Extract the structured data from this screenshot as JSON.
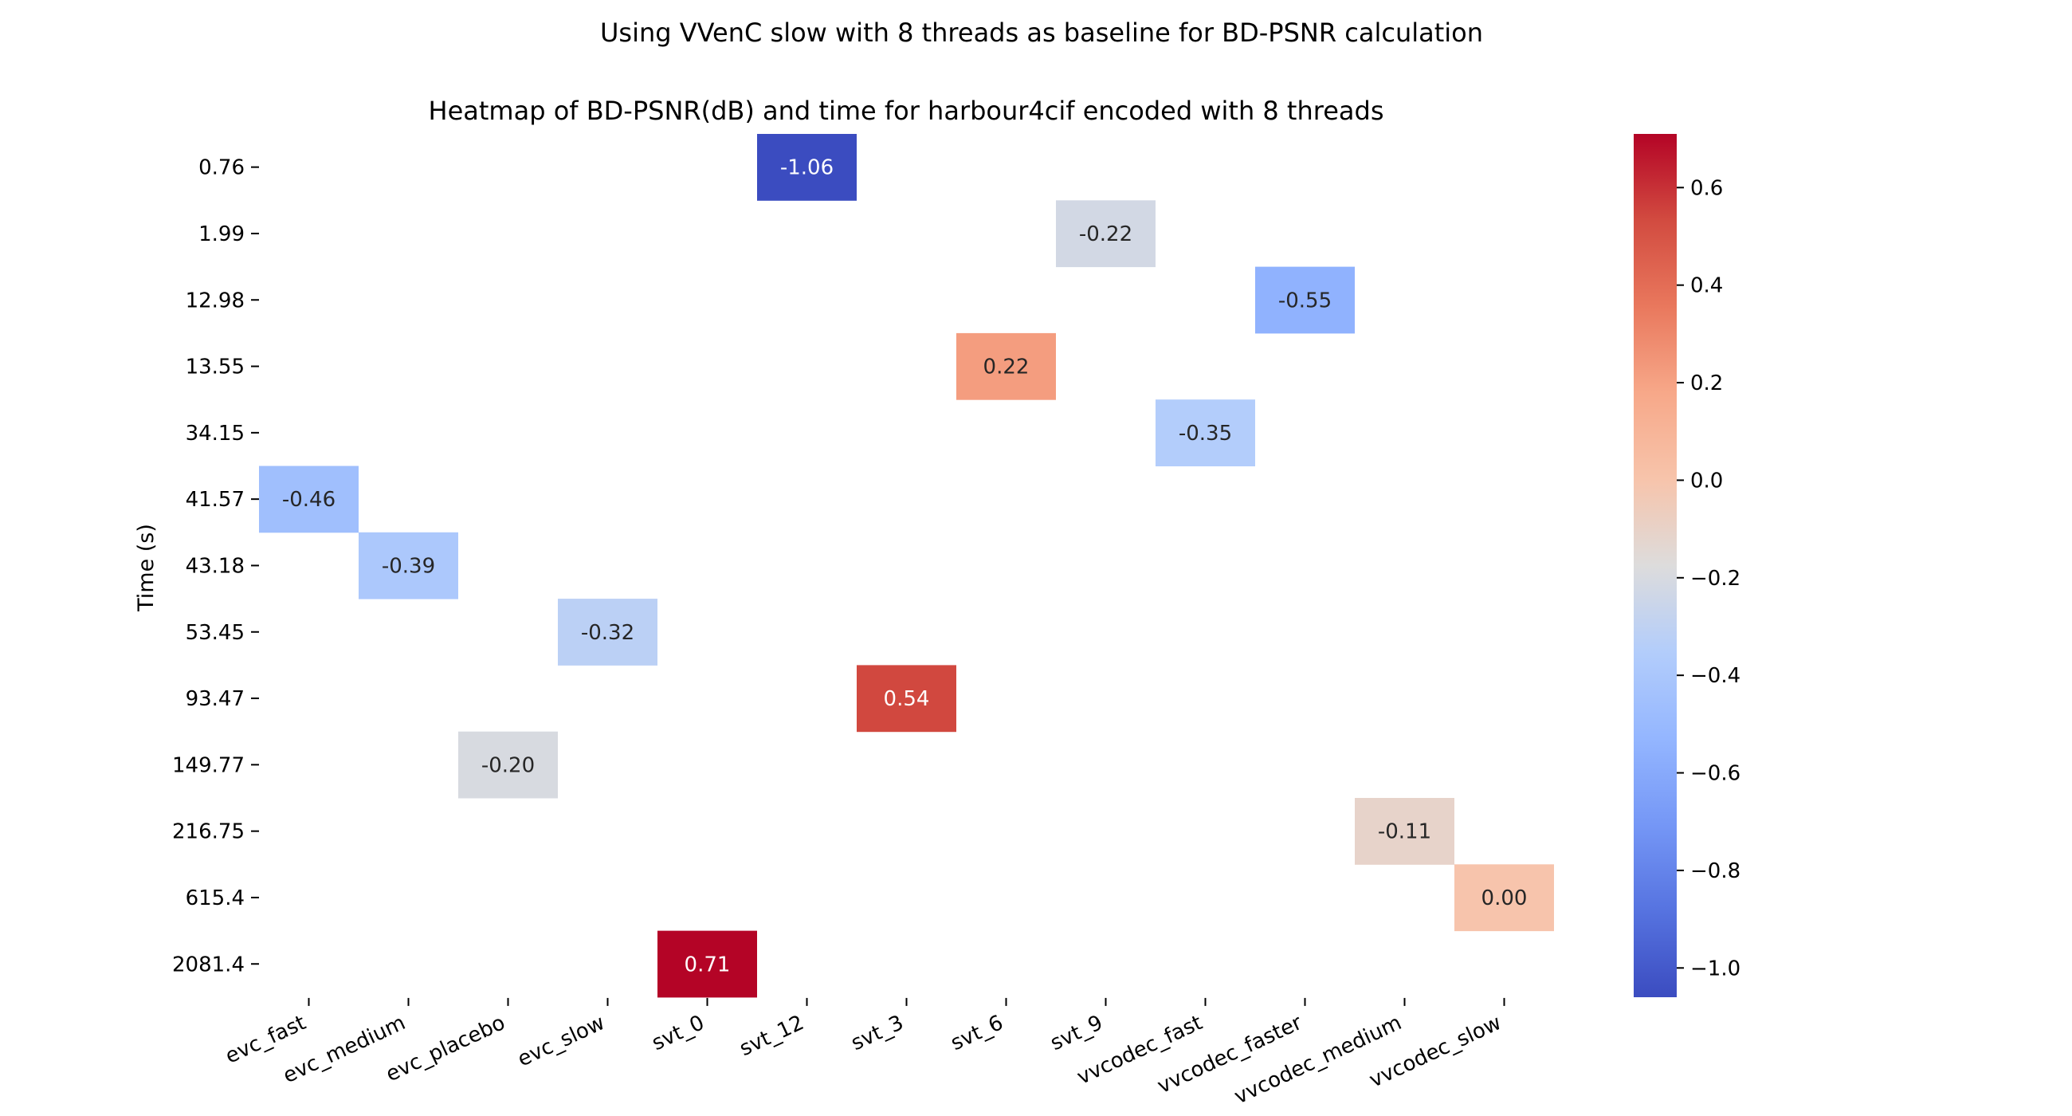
{
  "chart_data": {
    "type": "heatmap",
    "suptitle": "Using VVenC slow with 8 threads as baseline for BD-PSNR calculation",
    "title": "Heatmap of BD-PSNR(dB) and time for harbour4cif encoded with 8 threads",
    "xlabel": "",
    "ylabel": "Time (s)",
    "x_categories": [
      "evc_fast",
      "evc_medium",
      "evc_placebo",
      "evc_slow",
      "svt_0",
      "svt_12",
      "svt_3",
      "svt_6",
      "svt_9",
      "vvcodec_fast",
      "vvcodec_faster",
      "vvcodec_medium",
      "vvcodec_slow"
    ],
    "y_categories": [
      "0.76",
      "1.99",
      "12.98",
      "13.55",
      "34.15",
      "41.57",
      "43.18",
      "53.45",
      "93.47",
      "149.77",
      "216.75",
      "615.4",
      "2081.4"
    ],
    "cells": [
      {
        "x": "svt_12",
        "y": "0.76",
        "value": -1.06,
        "label": "-1.06"
      },
      {
        "x": "svt_9",
        "y": "1.99",
        "value": -0.22,
        "label": "-0.22"
      },
      {
        "x": "vvcodec_faster",
        "y": "12.98",
        "value": -0.55,
        "label": "-0.55"
      },
      {
        "x": "svt_6",
        "y": "13.55",
        "value": 0.22,
        "label": "0.22"
      },
      {
        "x": "vvcodec_fast",
        "y": "34.15",
        "value": -0.35,
        "label": "-0.35"
      },
      {
        "x": "evc_fast",
        "y": "41.57",
        "value": -0.46,
        "label": "-0.46"
      },
      {
        "x": "evc_medium",
        "y": "43.18",
        "value": -0.39,
        "label": "-0.39"
      },
      {
        "x": "evc_slow",
        "y": "53.45",
        "value": -0.32,
        "label": "-0.32"
      },
      {
        "x": "svt_3",
        "y": "93.47",
        "value": 0.54,
        "label": "0.54"
      },
      {
        "x": "evc_placebo",
        "y": "149.77",
        "value": -0.2,
        "label": "-0.20"
      },
      {
        "x": "vvcodec_medium",
        "y": "216.75",
        "value": -0.11,
        "label": "-0.11"
      },
      {
        "x": "vvcodec_slow",
        "y": "615.4",
        "value": 0.0,
        "label": "0.00"
      },
      {
        "x": "svt_0",
        "y": "2081.4",
        "value": 0.71,
        "label": "0.71"
      }
    ],
    "colormap": "coolwarm",
    "colorbar": {
      "range": [
        -1.06,
        0.71
      ],
      "ticks": [
        0.6,
        0.4,
        0.2,
        0.0,
        -0.2,
        -0.4,
        -0.6,
        -0.8,
        -1.0
      ],
      "tick_labels": [
        "0.6",
        "0.4",
        "0.2",
        "0.0",
        "−0.2",
        "−0.4",
        "−0.6",
        "−0.8",
        "−1.0"
      ]
    },
    "grid": false
  }
}
